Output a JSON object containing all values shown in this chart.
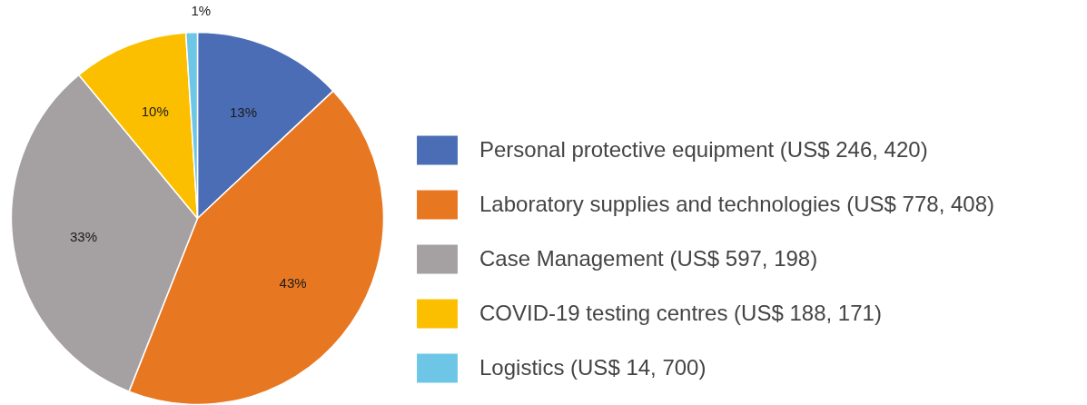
{
  "chart_data": {
    "type": "pie",
    "categories": [
      "Personal protective equipment (US$ 246, 420)",
      "Laboratory supplies and technologies (US$ 778, 408)",
      "Case Management (US$ 597, 198)",
      "COVID-19 testing centres (US$ 188, 171)",
      "Logistics (US$ 14, 700)"
    ],
    "values": [
      13,
      43,
      33,
      10,
      1
    ],
    "colors": [
      "#4a6db5",
      "#e87722",
      "#a5a0a2",
      "#fcbf00",
      "#6ec6e6"
    ],
    "value_labels": [
      "13%",
      "43%",
      "33%",
      "10%",
      "1%"
    ],
    "legend": "right"
  }
}
